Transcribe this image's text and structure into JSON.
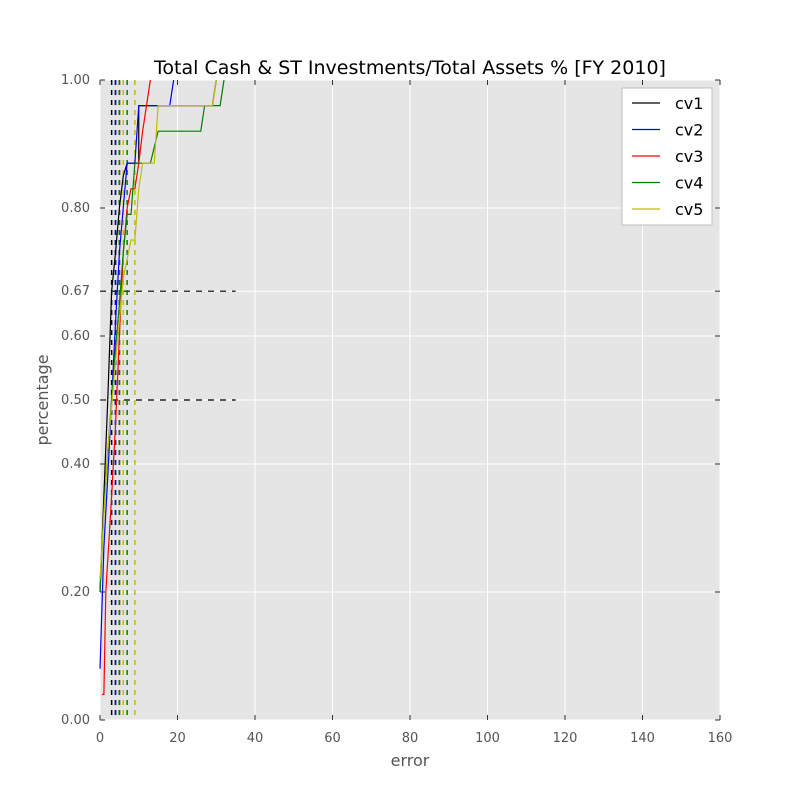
{
  "chart_data": {
    "type": "line",
    "title": "Total Cash & ST Investments/Total Assets % [FY 2010]",
    "xlabel": "error",
    "ylabel": "percentage",
    "xlim": [
      0,
      160
    ],
    "ylim": [
      0.0,
      1.0
    ],
    "xticks": [
      0,
      20,
      40,
      60,
      80,
      100,
      120,
      140,
      160
    ],
    "xtick_labels": [
      "0",
      "20",
      "40",
      "60",
      "80",
      "100",
      "120",
      "140",
      "160"
    ],
    "yticks": [
      0.0,
      0.2,
      0.4,
      0.5,
      0.6,
      0.67,
      0.8,
      1.0
    ],
    "ytick_labels": [
      "0.00",
      "0.20",
      "0.40",
      "0.50",
      "0.60",
      "0.67",
      "0.80",
      "1.00"
    ],
    "grid": true,
    "legend_position": "top-right",
    "series": [
      {
        "name": "cv1",
        "color": "#000000",
        "points": [
          [
            0,
            0.2
          ],
          [
            1,
            0.35
          ],
          [
            2,
            0.5
          ],
          [
            3,
            0.67
          ],
          [
            4,
            0.73
          ],
          [
            5,
            0.8
          ],
          [
            6,
            0.85
          ],
          [
            7,
            0.87
          ],
          [
            10,
            0.87
          ],
          [
            10,
            0.96
          ],
          [
            21,
            0.96
          ],
          [
            29,
            0.96
          ],
          [
            30,
            1.0
          ]
        ]
      },
      {
        "name": "cv2",
        "color": "#0000ff",
        "points": [
          [
            0,
            0.08
          ],
          [
            1,
            0.27
          ],
          [
            2,
            0.38
          ],
          [
            3,
            0.5
          ],
          [
            4,
            0.62
          ],
          [
            5,
            0.73
          ],
          [
            6,
            0.8
          ],
          [
            7,
            0.87
          ],
          [
            9,
            0.87
          ],
          [
            10,
            0.96
          ],
          [
            18,
            0.96
          ],
          [
            19,
            1.0
          ]
        ]
      },
      {
        "name": "cv3",
        "color": "#ff0000",
        "points": [
          [
            0.5,
            0.04
          ],
          [
            1,
            0.04
          ],
          [
            1.5,
            0.2
          ],
          [
            3,
            0.35
          ],
          [
            4,
            0.46
          ],
          [
            5,
            0.6
          ],
          [
            6,
            0.73
          ],
          [
            7,
            0.8
          ],
          [
            8,
            0.83
          ],
          [
            9,
            0.83
          ],
          [
            10,
            0.87
          ],
          [
            11,
            0.92
          ],
          [
            12,
            0.96
          ],
          [
            13,
            1.0
          ]
        ]
      },
      {
        "name": "cv4",
        "color": "#008000",
        "points": [
          [
            0,
            0.2
          ],
          [
            1,
            0.33
          ],
          [
            2,
            0.42
          ],
          [
            3,
            0.5
          ],
          [
            4,
            0.58
          ],
          [
            5,
            0.65
          ],
          [
            6,
            0.73
          ],
          [
            7,
            0.79
          ],
          [
            8,
            0.79
          ],
          [
            9,
            0.87
          ],
          [
            13,
            0.87
          ],
          [
            15,
            0.92
          ],
          [
            26,
            0.92
          ],
          [
            27,
            0.96
          ],
          [
            31,
            0.96
          ],
          [
            32,
            1.0
          ]
        ]
      },
      {
        "name": "cv5",
        "color": "#bfbf00",
        "points": [
          [
            0,
            0.22
          ],
          [
            2,
            0.42
          ],
          [
            4,
            0.56
          ],
          [
            6,
            0.69
          ],
          [
            8,
            0.75
          ],
          [
            9,
            0.75
          ],
          [
            10,
            0.83
          ],
          [
            11,
            0.87
          ],
          [
            14,
            0.87
          ],
          [
            15,
            0.96
          ],
          [
            29,
            0.96
          ],
          [
            30,
            1.0
          ]
        ]
      }
    ],
    "reference_lines": {
      "color": "#000000",
      "horizontal": [
        {
          "y": 0.67,
          "x_end": 35
        },
        {
          "y": 0.5,
          "x_end": 35
        }
      ],
      "vertical": [
        {
          "color": "#000000",
          "x": [
            3,
            4
          ]
        },
        {
          "color": "#0000ff",
          "x": [
            4,
            5
          ]
        },
        {
          "color": "#ff0000",
          "x": [
            5,
            6
          ]
        },
        {
          "color": "#008000",
          "x": [
            5,
            7
          ]
        },
        {
          "color": "#bfbf00",
          "x": [
            6,
            9
          ]
        }
      ]
    }
  }
}
